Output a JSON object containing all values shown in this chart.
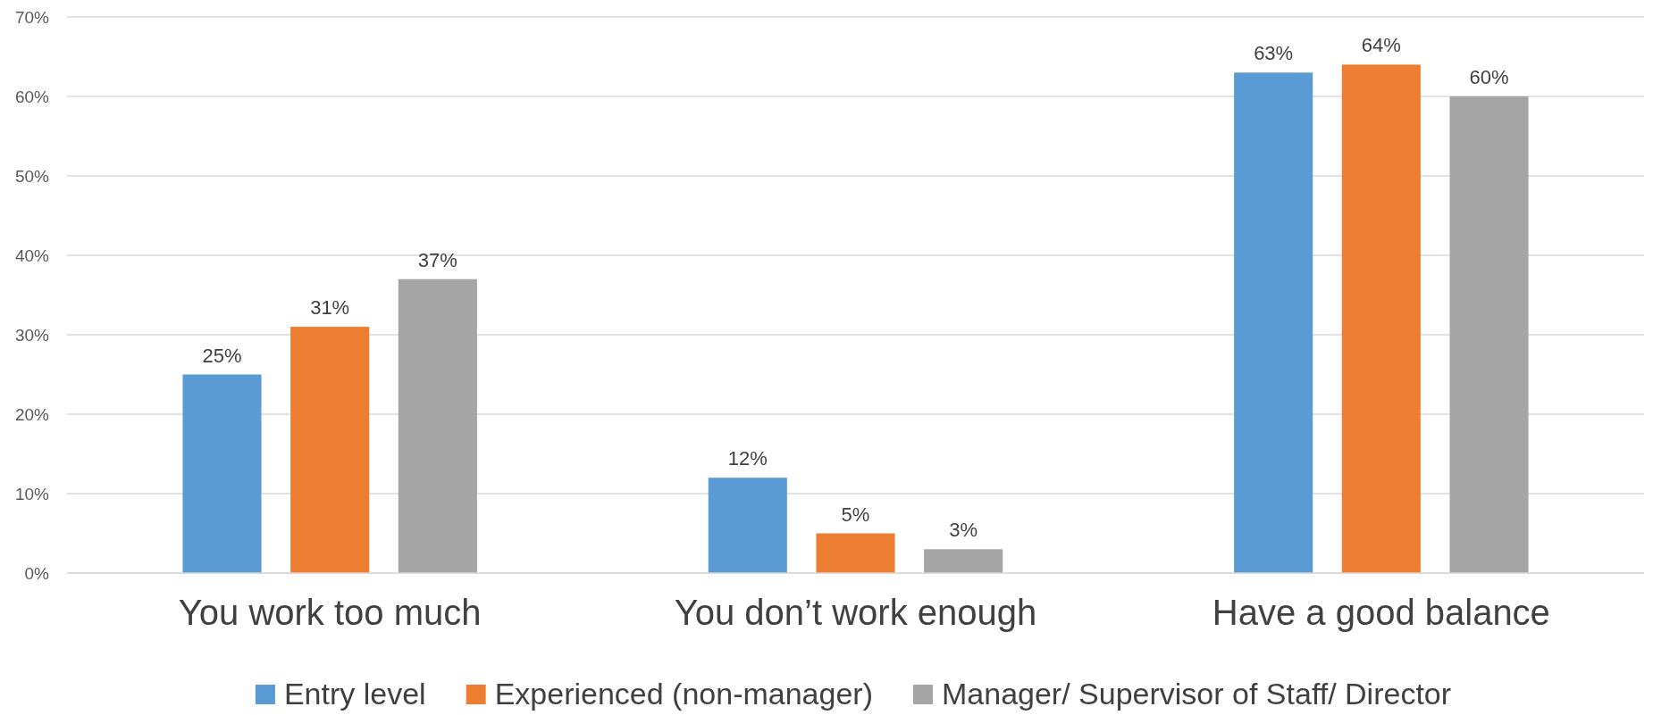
{
  "chart_data": {
    "type": "bar",
    "categories": [
      "You work too much",
      "You don’t work enough",
      "Have a good balance"
    ],
    "series": [
      {
        "name": "Entry level",
        "color": "#5b9bd5",
        "values": [
          25,
          12,
          63
        ]
      },
      {
        "name": "Experienced (non-manager)",
        "color": "#ed7d31",
        "values": [
          31,
          5,
          64
        ]
      },
      {
        "name": "Manager/ Supervisor of Staff/ Director",
        "color": "#a5a5a5",
        "values": [
          37,
          3,
          60
        ]
      }
    ],
    "ylim": [
      0,
      70
    ],
    "yticks": [
      {
        "value": 0,
        "label": "0%"
      },
      {
        "value": 10,
        "label": "10%"
      },
      {
        "value": 20,
        "label": "20%"
      },
      {
        "value": 30,
        "label": "30%"
      },
      {
        "value": 40,
        "label": "40%"
      },
      {
        "value": 50,
        "label": "50%"
      },
      {
        "value": 60,
        "label": "60%"
      },
      {
        "value": 70,
        "label": "70%"
      }
    ],
    "value_labels": [
      [
        "25%",
        "12%",
        "63%"
      ],
      [
        "31%",
        "5%",
        "64%"
      ],
      [
        "37%",
        "3%",
        "60%"
      ]
    ],
    "grid": "y",
    "legend": "bottom"
  }
}
